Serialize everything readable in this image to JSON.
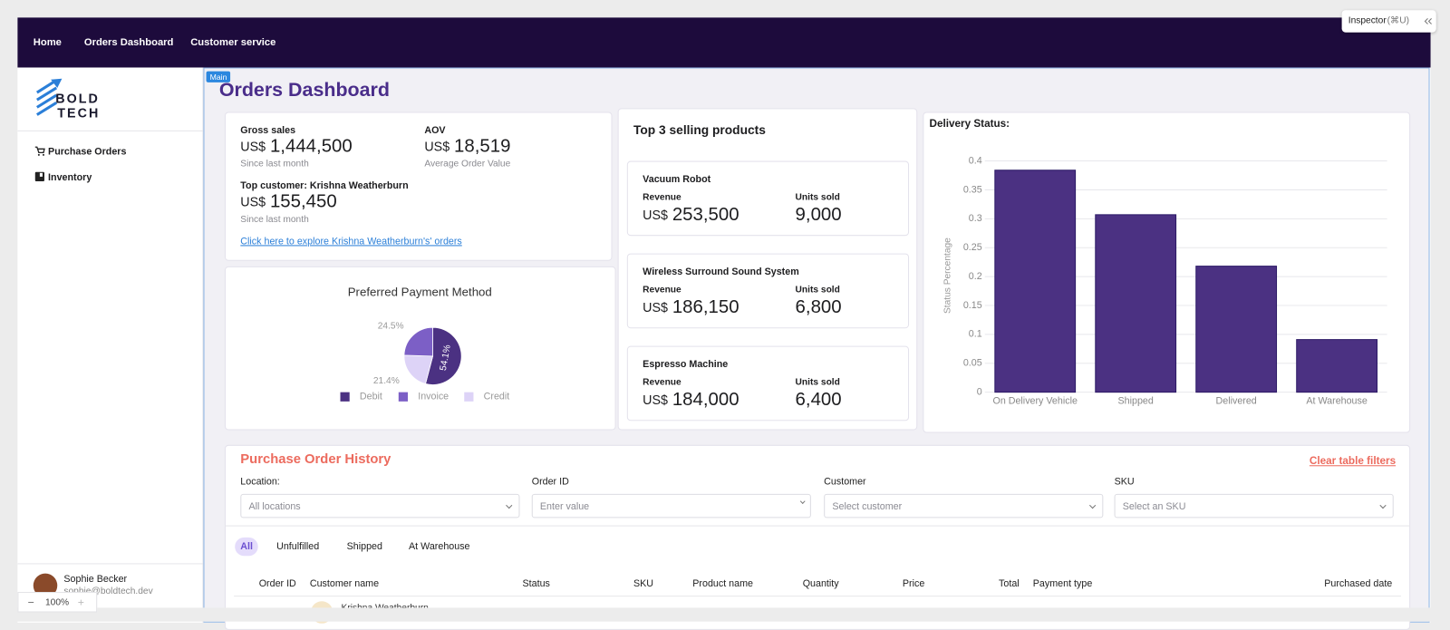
{
  "inspector": {
    "label": "Inspector",
    "shortcut": "(⌘U)"
  },
  "nav": {
    "items": [
      "Home",
      "Orders Dashboard",
      "Customer service"
    ]
  },
  "sidebar": {
    "logo": [
      "BOLD",
      "TECH"
    ],
    "links": [
      "Purchase Orders",
      "Inventory"
    ],
    "user": {
      "name": "Sophie Becker",
      "email": "sophie@boldtech.dev"
    },
    "zoom": "100%"
  },
  "main": {
    "badge": "Main",
    "title": "Orders Dashboard"
  },
  "stats": {
    "gross_sales": {
      "label": "Gross sales",
      "currency": "US$",
      "value": "1,444,500",
      "note": "Since last month"
    },
    "aov": {
      "label": "AOV",
      "currency": "US$",
      "value": "18,519",
      "note": "Average Order Value"
    },
    "top_customer": {
      "label": "Top customer: Krishna Weatherburn",
      "currency": "US$",
      "value": "155,450",
      "note": "Since last month"
    },
    "link": "Click here to explore Krishna Weatherburn's' orders"
  },
  "top_products": {
    "title": "Top 3 selling products",
    "items": [
      {
        "name": "Vacuum Robot",
        "revenue_label": "Revenue",
        "currency": "US$",
        "revenue": "253,500",
        "units_label": "Units sold",
        "units": "9,000"
      },
      {
        "name": "Wireless Surround Sound System",
        "revenue_label": "Revenue",
        "currency": "US$",
        "revenue": "186,150",
        "units_label": "Units sold",
        "units": "6,800"
      },
      {
        "name": "Espresso Machine",
        "revenue_label": "Revenue",
        "currency": "US$",
        "revenue": "184,000",
        "units_label": "Units sold",
        "units": "6,400"
      }
    ]
  },
  "chart_data": [
    {
      "type": "pie",
      "title": "Preferred Payment Method",
      "categories": [
        "Debit",
        "Invoice",
        "Credit"
      ],
      "values": [
        54.1,
        24.5,
        21.4
      ],
      "value_labels": [
        "54.1%",
        "24.5%",
        "21.4%"
      ],
      "colors": [
        "#4b3182",
        "#7c5fc6",
        "#ddd3f7"
      ]
    },
    {
      "type": "bar",
      "title": "Delivery Status:",
      "y_label": "Status Percentage",
      "categories": [
        "On Delivery Vehicle",
        "Shipped",
        "Delivered",
        "At Warehouse"
      ],
      "values": [
        0.384,
        0.307,
        0.218,
        0.091
      ],
      "color": "#4b3182",
      "ylim": [
        0,
        0.4
      ],
      "yticks": [
        0,
        0.05,
        0.1,
        0.15,
        0.2,
        0.25,
        0.3,
        0.35,
        0.4
      ],
      "grid": true
    }
  ],
  "order_history": {
    "title": "Purchase Order History",
    "clear": "Clear table filters",
    "filters": [
      {
        "label": "Location:",
        "placeholder": "All locations"
      },
      {
        "label": "Order ID",
        "placeholder": "Enter value"
      },
      {
        "label": "Customer",
        "placeholder": "Select customer"
      },
      {
        "label": "SKU",
        "placeholder": "Select an SKU"
      }
    ],
    "tabs": [
      "All",
      "Unfulfilled",
      "Shipped",
      "At Warehouse"
    ],
    "columns": [
      "Order ID",
      "Customer name",
      "Status",
      "SKU",
      "Product name",
      "Quantity",
      "Price",
      "Total",
      "Payment type",
      "Purchased date"
    ],
    "rows": [
      {
        "customer": "Krishna Weatherburn"
      }
    ]
  }
}
